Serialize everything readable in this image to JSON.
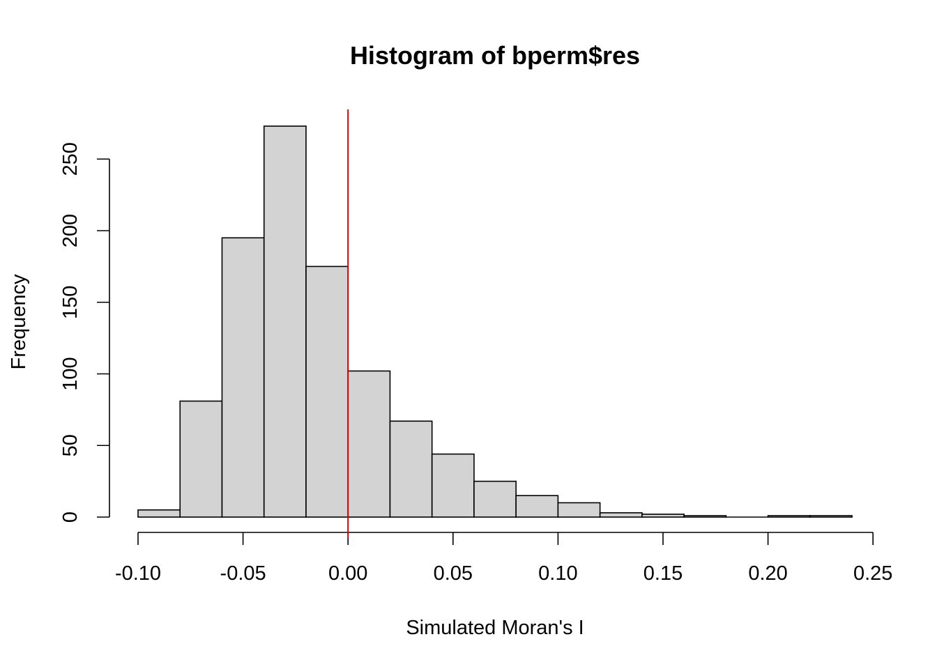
{
  "chart_data": {
    "type": "bar",
    "title": "Histogram of bperm$res",
    "xlabel": "Simulated Moran's I",
    "ylabel": "Frequency",
    "bin_edges": [
      -0.1,
      -0.08,
      -0.06,
      -0.04,
      -0.02,
      0.0,
      0.02,
      0.04,
      0.06,
      0.08,
      0.1,
      0.12,
      0.14,
      0.16,
      0.18,
      0.2,
      0.22,
      0.24
    ],
    "counts": [
      5,
      81,
      195,
      273,
      175,
      102,
      67,
      44,
      25,
      15,
      10,
      3,
      2,
      1,
      0,
      1,
      1
    ],
    "xlim": [
      -0.1,
      0.25
    ],
    "ylim": [
      0,
      280
    ],
    "x_ticks": [
      -0.1,
      -0.05,
      0.0,
      0.05,
      0.1,
      0.15,
      0.2,
      0.25
    ],
    "x_tick_labels": [
      "-0.10",
      "-0.05",
      "0.00",
      "0.05",
      "0.10",
      "0.15",
      "0.20",
      "0.25"
    ],
    "y_ticks": [
      0,
      50,
      100,
      150,
      200,
      250
    ],
    "y_tick_labels": [
      "0",
      "50",
      "100",
      "150",
      "200",
      "250"
    ],
    "reference_line": {
      "x": 0.0,
      "color": "#dd0000"
    },
    "bar_fill": "#d3d3d3",
    "bar_stroke": "#000000",
    "grid": false,
    "legend": "none"
  }
}
